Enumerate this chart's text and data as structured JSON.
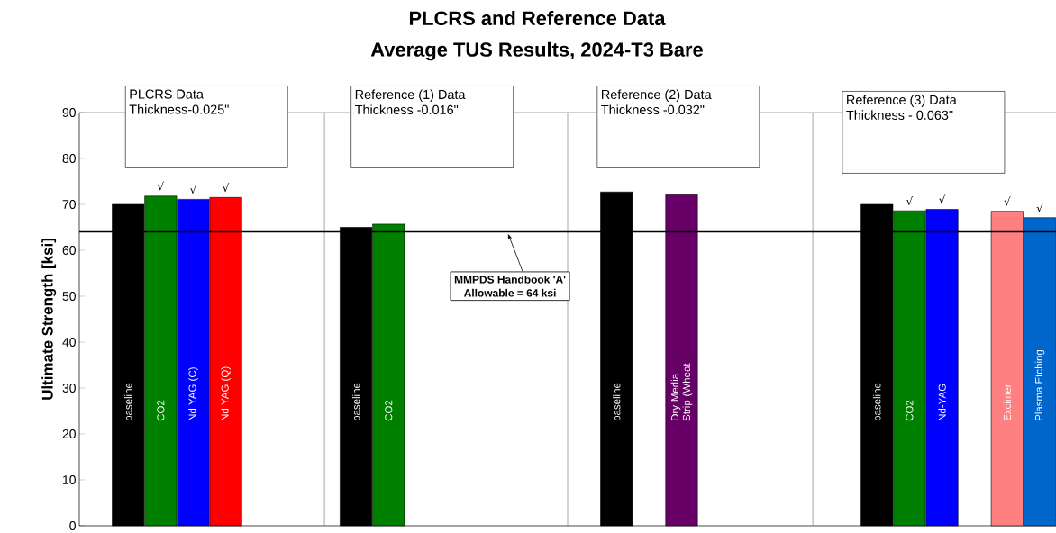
{
  "chart_data": {
    "type": "bar",
    "title": "PLCRS and Reference Data",
    "subtitle": "Average TUS Results, 2024-T3 Bare",
    "ylabel": "Ultimate Strength [ksi]",
    "categories": [
      null,
      "baseline",
      "CO2",
      "Nd YAG (C)",
      "Nd YAG (Q)",
      null,
      null,
      null,
      "baseline",
      "CO2",
      null,
      null,
      null,
      null,
      null,
      null,
      "baseline",
      null,
      "Dry Media Strip (Wheat",
      null,
      null,
      null,
      null,
      null,
      "baseline",
      "CO2",
      "Nd-YAG",
      null,
      "Excimer",
      "Plasma Etching"
    ],
    "values": [
      null,
      70,
      71.8,
      71.1,
      71.5,
      null,
      null,
      null,
      65.0,
      65.7,
      null,
      null,
      null,
      null,
      null,
      null,
      72.7,
      null,
      72.1,
      null,
      null,
      null,
      null,
      null,
      70.0,
      68.6,
      68.9,
      null,
      68.5,
      67.1
    ],
    "colors": [
      null,
      "#000000",
      "#008000",
      "#0000ff",
      "#ff0000",
      null,
      null,
      null,
      "#000000",
      "#008000",
      null,
      null,
      null,
      null,
      null,
      null,
      "#000000",
      null,
      "#660066",
      null,
      null,
      null,
      null,
      null,
      "#000000",
      "#008000",
      "#0000ff",
      null,
      "#ff8080",
      "#0066cc"
    ],
    "value_labels": [
      null,
      null,
      "√",
      "√",
      "√",
      null,
      null,
      null,
      null,
      null,
      null,
      null,
      null,
      null,
      null,
      null,
      null,
      null,
      null,
      null,
      null,
      null,
      null,
      null,
      null,
      "√",
      "√",
      null,
      "√",
      "√"
    ],
    "ylim": [
      0,
      90
    ],
    "yticks": [
      0,
      10,
      20,
      30,
      40,
      50,
      60,
      70,
      80,
      90
    ],
    "ref_lines": [
      {
        "axis": "y",
        "value": 64,
        "color": "#000000",
        "label": "MMPDS Handbook 'A' Allowable = 64 ksi"
      }
    ],
    "annotations": [
      "PLCRS Data Thickness-0.025\"",
      "Reference (1) Data Thickness -0.016\"",
      "Reference (2) Data Thickness -0.032\"",
      "Reference (3) Data Thickness - 0.063\""
    ]
  }
}
